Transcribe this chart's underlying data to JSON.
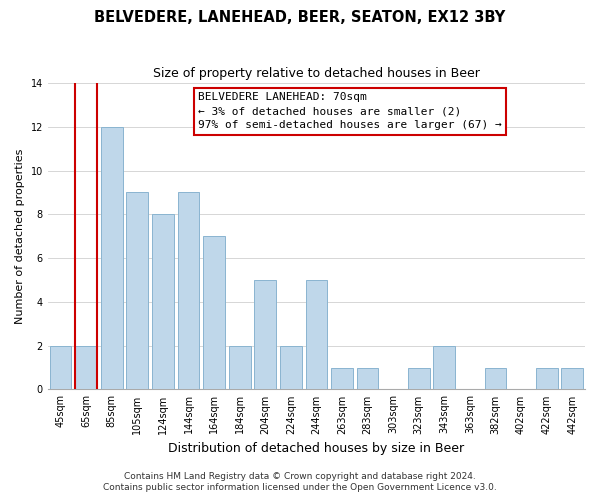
{
  "title": "BELVEDERE, LANEHEAD, BEER, SEATON, EX12 3BY",
  "subtitle": "Size of property relative to detached houses in Beer",
  "xlabel": "Distribution of detached houses by size in Beer",
  "ylabel": "Number of detached properties",
  "categories": [
    "45sqm",
    "65sqm",
    "85sqm",
    "105sqm",
    "124sqm",
    "144sqm",
    "164sqm",
    "184sqm",
    "204sqm",
    "224sqm",
    "244sqm",
    "263sqm",
    "283sqm",
    "303sqm",
    "323sqm",
    "343sqm",
    "363sqm",
    "382sqm",
    "402sqm",
    "422sqm",
    "442sqm"
  ],
  "values": [
    2,
    2,
    12,
    9,
    8,
    9,
    7,
    2,
    5,
    2,
    5,
    1,
    1,
    0,
    1,
    2,
    0,
    1,
    0,
    1,
    1
  ],
  "bar_color": "#bfd7ea",
  "bar_edge_color": "#8ab4d0",
  "highlight_bar_index": 1,
  "highlight_line_color": "#cc0000",
  "ylim": [
    0,
    14
  ],
  "yticks": [
    0,
    2,
    4,
    6,
    8,
    10,
    12,
    14
  ],
  "annotation_title": "BELVEDERE LANEHEAD: 70sqm",
  "annotation_line1": "← 3% of detached houses are smaller (2)",
  "annotation_line2": "97% of semi-detached houses are larger (67) →",
  "annotation_box_color": "#ffffff",
  "annotation_box_edge": "#cc0000",
  "footer1": "Contains HM Land Registry data © Crown copyright and database right 2024.",
  "footer2": "Contains public sector information licensed under the Open Government Licence v3.0.",
  "title_fontsize": 10.5,
  "subtitle_fontsize": 9,
  "xlabel_fontsize": 9,
  "ylabel_fontsize": 8,
  "tick_fontsize": 7,
  "annotation_fontsize": 8,
  "footer_fontsize": 6.5
}
